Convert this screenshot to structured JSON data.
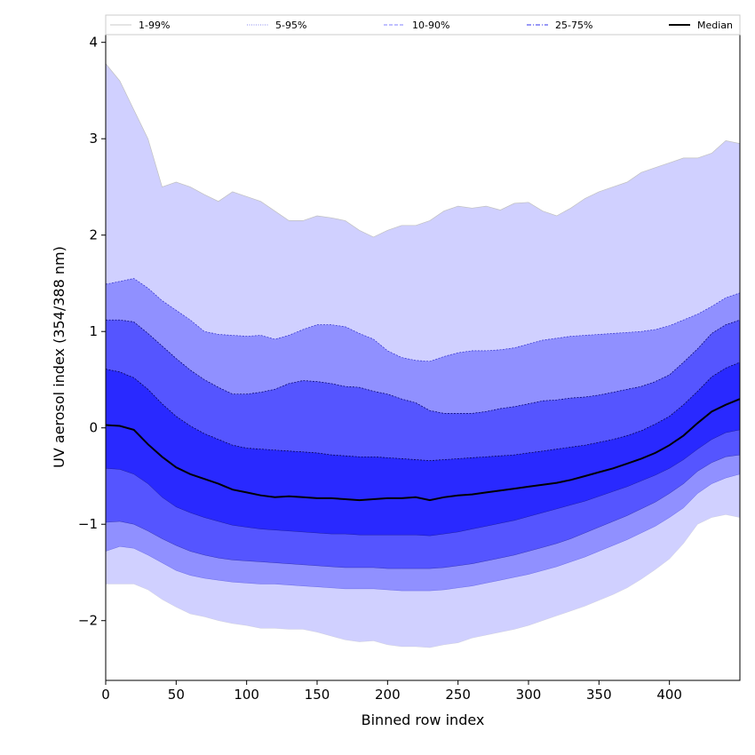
{
  "chart_data": {
    "type": "area",
    "xlabel": "Binned row index",
    "ylabel": "UV aerosol index (354/388 nm)",
    "xlim": [
      0,
      450
    ],
    "ylim": [
      -2.62,
      4.08
    ],
    "xticks": [
      0,
      50,
      100,
      150,
      200,
      250,
      300,
      350,
      400
    ],
    "yticks": [
      -2,
      -1,
      0,
      1,
      2,
      3,
      4
    ],
    "xtick_labels": [
      "0",
      "50",
      "100",
      "150",
      "200",
      "250",
      "300",
      "350",
      "400"
    ],
    "ytick_labels": [
      "−2",
      "−1",
      "0",
      "1",
      "2",
      "3",
      "4"
    ],
    "grid": false,
    "legend_position": "top",
    "x": [
      0,
      10,
      20,
      30,
      40,
      50,
      60,
      70,
      80,
      90,
      100,
      110,
      120,
      130,
      140,
      150,
      160,
      170,
      180,
      190,
      200,
      210,
      220,
      230,
      240,
      250,
      260,
      270,
      280,
      290,
      300,
      310,
      320,
      330,
      340,
      350,
      360,
      370,
      380,
      390,
      400,
      410,
      420,
      430,
      440,
      450
    ],
    "bands": [
      {
        "name": "1-99%",
        "color": "#d0d0ff",
        "edge_color": "#c0c0c0",
        "lower": [
          -1.62,
          -1.62,
          -1.62,
          -1.68,
          -1.78,
          -1.86,
          -1.93,
          -1.96,
          -2.0,
          -2.03,
          -2.05,
          -2.08,
          -2.08,
          -2.09,
          -2.09,
          -2.12,
          -2.16,
          -2.2,
          -2.22,
          -2.21,
          -2.25,
          -2.27,
          -2.27,
          -2.28,
          -2.25,
          -2.23,
          -2.18,
          -2.15,
          -2.12,
          -2.09,
          -2.05,
          -2.0,
          -1.95,
          -1.9,
          -1.85,
          -1.79,
          -1.73,
          -1.66,
          -1.57,
          -1.47,
          -1.36,
          -1.2,
          -1.0,
          -0.93,
          -0.9,
          -0.93
        ],
        "upper": [
          3.78,
          3.6,
          3.3,
          3.0,
          2.5,
          2.55,
          2.5,
          2.42,
          2.35,
          2.45,
          2.4,
          2.35,
          2.25,
          2.15,
          2.15,
          2.2,
          2.18,
          2.15,
          2.05,
          1.98,
          2.05,
          2.1,
          2.1,
          2.15,
          2.25,
          2.3,
          2.28,
          2.3,
          2.26,
          2.33,
          2.34,
          2.25,
          2.2,
          2.28,
          2.38,
          2.45,
          2.5,
          2.55,
          2.65,
          2.7,
          2.75,
          2.8,
          2.8,
          2.85,
          2.98,
          2.95
        ]
      },
      {
        "name": "5-95%",
        "color": "#9090ff",
        "edge_color": "#3333cc",
        "lower": [
          -1.28,
          -1.23,
          -1.25,
          -1.32,
          -1.4,
          -1.48,
          -1.53,
          -1.56,
          -1.58,
          -1.6,
          -1.61,
          -1.62,
          -1.62,
          -1.63,
          -1.64,
          -1.65,
          -1.66,
          -1.67,
          -1.67,
          -1.67,
          -1.68,
          -1.69,
          -1.69,
          -1.69,
          -1.68,
          -1.66,
          -1.64,
          -1.61,
          -1.58,
          -1.55,
          -1.52,
          -1.48,
          -1.44,
          -1.39,
          -1.34,
          -1.28,
          -1.22,
          -1.16,
          -1.09,
          -1.02,
          -0.93,
          -0.83,
          -0.68,
          -0.58,
          -0.52,
          -0.48
        ],
        "upper": [
          1.49,
          1.52,
          1.55,
          1.45,
          1.32,
          1.22,
          1.12,
          1.0,
          0.97,
          0.96,
          0.95,
          0.96,
          0.92,
          0.96,
          1.02,
          1.07,
          1.07,
          1.05,
          0.98,
          0.92,
          0.8,
          0.73,
          0.7,
          0.69,
          0.74,
          0.78,
          0.8,
          0.8,
          0.81,
          0.83,
          0.87,
          0.91,
          0.93,
          0.95,
          0.96,
          0.97,
          0.98,
          0.99,
          1.0,
          1.02,
          1.06,
          1.12,
          1.18,
          1.26,
          1.35,
          1.4
        ]
      },
      {
        "name": "10-90%",
        "color": "#5555ff",
        "edge_color": "#000066",
        "lower": [
          -0.98,
          -0.97,
          -1.0,
          -1.07,
          -1.15,
          -1.22,
          -1.28,
          -1.32,
          -1.35,
          -1.37,
          -1.38,
          -1.39,
          -1.4,
          -1.41,
          -1.42,
          -1.43,
          -1.44,
          -1.45,
          -1.45,
          -1.45,
          -1.46,
          -1.46,
          -1.46,
          -1.46,
          -1.45,
          -1.43,
          -1.41,
          -1.38,
          -1.35,
          -1.32,
          -1.28,
          -1.24,
          -1.2,
          -1.15,
          -1.09,
          -1.03,
          -0.97,
          -0.91,
          -0.84,
          -0.77,
          -0.68,
          -0.58,
          -0.45,
          -0.36,
          -0.3,
          -0.28
        ],
        "upper": [
          1.12,
          1.12,
          1.1,
          0.98,
          0.85,
          0.72,
          0.6,
          0.5,
          0.42,
          0.35,
          0.35,
          0.37,
          0.4,
          0.46,
          0.49,
          0.48,
          0.46,
          0.43,
          0.42,
          0.38,
          0.35,
          0.3,
          0.26,
          0.18,
          0.15,
          0.15,
          0.15,
          0.17,
          0.2,
          0.22,
          0.25,
          0.28,
          0.29,
          0.31,
          0.32,
          0.34,
          0.37,
          0.4,
          0.43,
          0.48,
          0.55,
          0.68,
          0.82,
          0.98,
          1.07,
          1.12
        ]
      },
      {
        "name": "25-75%",
        "color": "#2929ff",
        "edge_color": "#000040",
        "lower": [
          -0.42,
          -0.43,
          -0.48,
          -0.58,
          -0.72,
          -0.82,
          -0.88,
          -0.93,
          -0.97,
          -1.01,
          -1.03,
          -1.05,
          -1.06,
          -1.07,
          -1.08,
          -1.09,
          -1.1,
          -1.1,
          -1.11,
          -1.11,
          -1.11,
          -1.11,
          -1.11,
          -1.12,
          -1.1,
          -1.08,
          -1.05,
          -1.02,
          -0.99,
          -0.96,
          -0.92,
          -0.88,
          -0.84,
          -0.8,
          -0.76,
          -0.71,
          -0.66,
          -0.61,
          -0.55,
          -0.49,
          -0.42,
          -0.33,
          -0.22,
          -0.12,
          -0.05,
          -0.02
        ],
        "upper": [
          0.61,
          0.58,
          0.52,
          0.4,
          0.25,
          0.12,
          0.02,
          -0.06,
          -0.12,
          -0.18,
          -0.21,
          -0.22,
          -0.23,
          -0.24,
          -0.25,
          -0.26,
          -0.28,
          -0.29,
          -0.3,
          -0.3,
          -0.31,
          -0.32,
          -0.33,
          -0.34,
          -0.33,
          -0.32,
          -0.31,
          -0.3,
          -0.29,
          -0.28,
          -0.26,
          -0.24,
          -0.22,
          -0.2,
          -0.18,
          -0.15,
          -0.12,
          -0.08,
          -0.03,
          0.04,
          0.12,
          0.24,
          0.38,
          0.53,
          0.62,
          0.68
        ]
      }
    ],
    "median": {
      "name": "Median",
      "color": "#000000",
      "values": [
        0.03,
        0.02,
        -0.02,
        -0.17,
        -0.3,
        -0.41,
        -0.48,
        -0.53,
        -0.58,
        -0.64,
        -0.67,
        -0.7,
        -0.72,
        -0.71,
        -0.72,
        -0.73,
        -0.73,
        -0.74,
        -0.75,
        -0.74,
        -0.73,
        -0.73,
        -0.72,
        -0.75,
        -0.72,
        -0.7,
        -0.69,
        -0.67,
        -0.65,
        -0.63,
        -0.61,
        -0.59,
        -0.57,
        -0.54,
        -0.5,
        -0.46,
        -0.42,
        -0.37,
        -0.32,
        -0.26,
        -0.18,
        -0.08,
        0.05,
        0.17,
        0.24,
        0.3
      ]
    },
    "legend": [
      {
        "label": "1-99%",
        "color": "#c8c8c8",
        "style": "solid"
      },
      {
        "label": "5-95%",
        "color": "#8888ee",
        "style": "dotted"
      },
      {
        "label": "10-90%",
        "color": "#8080ff",
        "style": "dashed"
      },
      {
        "label": "25-75%",
        "color": "#3333ee",
        "style": "dashdot"
      },
      {
        "label": "Median",
        "color": "#000000",
        "style": "solid-thick"
      }
    ]
  }
}
